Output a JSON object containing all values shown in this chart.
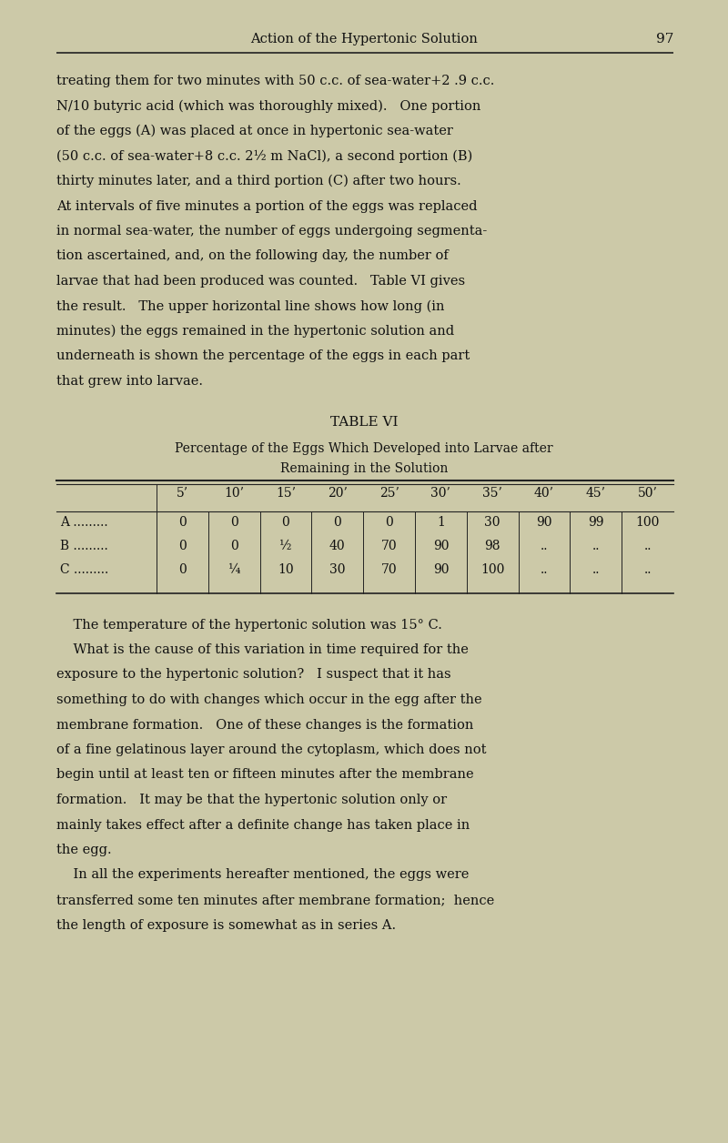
{
  "background_color": "#d8d5b8",
  "page_background": "#ccc9a8",
  "text_color": "#111111",
  "line_color": "#222222",
  "header_title": "Action of the Hypertonic Solution",
  "header_page": "97",
  "body_paragraphs": [
    "treating them for two minutes with 50 c.c. of sea-water+2 .9 c.c.",
    "N/10 butyric acid (which was thoroughly mixed).   One portion",
    "of the eggs (A) was placed at once in hypertonic sea-water",
    "(50 c.c. of sea-water+8 c.c. 2½ m NaCl), a second portion (B)",
    "thirty minutes later, and a third portion (C) after two hours.",
    "At intervals of five minutes a portion of the eggs was replaced",
    "in normal sea-water, the number of eggs undergoing segmenta-",
    "tion ascertained, and, on the following day, the number of",
    "larvae that had been produced was counted.   Table VI gives",
    "the result.   The upper horizontal line shows how long (in",
    "minutes) the eggs remained in the hypertonic solution and",
    "underneath is shown the percentage of the eggs in each part",
    "that grew into larvae."
  ],
  "table_title": "TABLE VI",
  "table_subtitle1": "Percentage of the Eggs Which Developed into Larvae after",
  "table_subtitle2": "Remaining in the Solution",
  "table_columns": [
    "",
    "5’",
    "10’",
    "15’",
    "20’",
    "25’",
    "30’",
    "35’",
    "40’",
    "45’",
    "50’"
  ],
  "table_rows": [
    [
      "A .........",
      "0",
      "0",
      "0",
      "0",
      "0",
      "1",
      "30",
      "90",
      "99",
      "100"
    ],
    [
      "B .........",
      "0",
      "0",
      "½",
      "40",
      "70",
      "90",
      "98",
      "..",
      "..",
      ".."
    ],
    [
      "C .........",
      "0",
      "¼",
      "10",
      "30",
      "70",
      "90",
      "100",
      "..",
      "..",
      ".."
    ]
  ],
  "footer_paragraphs": [
    "    The temperature of the hypertonic solution was 15° C.",
    "    What is the cause of this variation in time required for the",
    "exposure to the hypertonic solution?   I suspect that it has",
    "something to do with changes which occur in the egg after the",
    "membrane formation.   One of these changes is the formation",
    "of a fine gelatinous layer around the cytoplasm, which does not",
    "begin until at least ten or fifteen minutes after the membrane",
    "formation.   It may be that the hypertonic solution only or",
    "mainly takes effect after a definite change has taken place in",
    "the egg.",
    "    In all the experiments hereafter mentioned, the eggs were",
    "transferred some ten minutes after membrane formation;  hence",
    "the length of exposure is somewhat as in series A."
  ]
}
